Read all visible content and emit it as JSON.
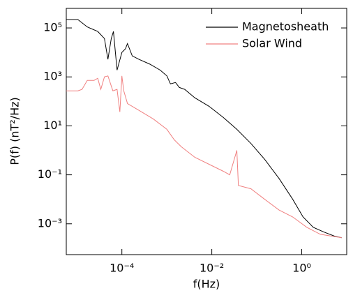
{
  "chart_data": {
    "type": "line",
    "xlabel": "f(Hz)",
    "ylabel": "P(f)   (nT²/Hz)",
    "xscale": "log",
    "yscale": "log",
    "xlim": [
      5.8e-06,
      10
    ],
    "ylim": [
      5.5e-05,
      630000
    ],
    "xticks": [
      {
        "value": 0.0001,
        "label": "10⁻⁴"
      },
      {
        "value": 0.01,
        "label": "10⁻²"
      },
      {
        "value": 1,
        "label": "10⁰"
      }
    ],
    "yticks": [
      {
        "value": 0.001,
        "label": "10⁻³"
      },
      {
        "value": 0.1,
        "label": "10⁻¹"
      },
      {
        "value": 10,
        "label": "10¹"
      },
      {
        "value": 1000,
        "label": "10³"
      },
      {
        "value": 100000,
        "label": "10⁵"
      }
    ],
    "legend": "upper right",
    "series": [
      {
        "name": "Magnetosheath",
        "color": "#000000",
        "x": [
          5.8e-06,
          1.05e-05,
          1.7e-05,
          2.9e-05,
          4.1e-05,
          4.9e-05,
          5.8e-05,
          6.5e-05,
          7.8e-05,
          0.0001,
          0.00012,
          0.000133,
          0.00017,
          0.00024,
          0.00042,
          0.00071,
          0.001,
          0.0012,
          0.00156,
          0.0019,
          0.0025,
          0.0042,
          0.0087,
          0.018,
          0.036,
          0.074,
          0.15,
          0.31,
          0.63,
          1.07,
          1.8,
          3.1,
          5.4,
          7.7
        ],
        "values": [
          220000,
          220000,
          110000,
          72000,
          37000,
          5200,
          37000,
          72000,
          1900,
          10000,
          14000,
          23000,
          7200,
          5200,
          3300,
          1900,
          1100,
          520,
          590,
          370,
          310,
          140,
          63,
          22,
          7.2,
          1.9,
          0.43,
          0.072,
          0.01,
          0.0019,
          0.00072,
          0.00046,
          0.00031,
          0.00027
        ]
      },
      {
        "name": "Solar Wind",
        "color": "#f08080",
        "x": [
          5.8e-06,
          1.05e-05,
          1.3e-05,
          1.7e-05,
          2.4e-05,
          2.9e-05,
          3.4e-05,
          4.1e-05,
          4.9e-05,
          6.3e-05,
          7.8e-05,
          9e-05,
          0.0001,
          0.00011,
          0.000133,
          0.00024,
          0.0005,
          0.001,
          0.00146,
          0.0021,
          0.0042,
          0.0087,
          0.018,
          0.025,
          0.036,
          0.039,
          0.074,
          0.15,
          0.31,
          0.63,
          1.29,
          2.6,
          7.7
        ],
        "values": [
          270,
          270,
          310,
          720,
          720,
          880,
          310,
          1000,
          1100,
          270,
          310,
          37,
          1100,
          270,
          82,
          43,
          19,
          7.2,
          2.7,
          1.4,
          0.52,
          0.27,
          0.14,
          0.1,
          1,
          0.037,
          0.027,
          0.01,
          0.0037,
          0.0019,
          0.00072,
          0.00037,
          0.00027
        ]
      }
    ]
  }
}
